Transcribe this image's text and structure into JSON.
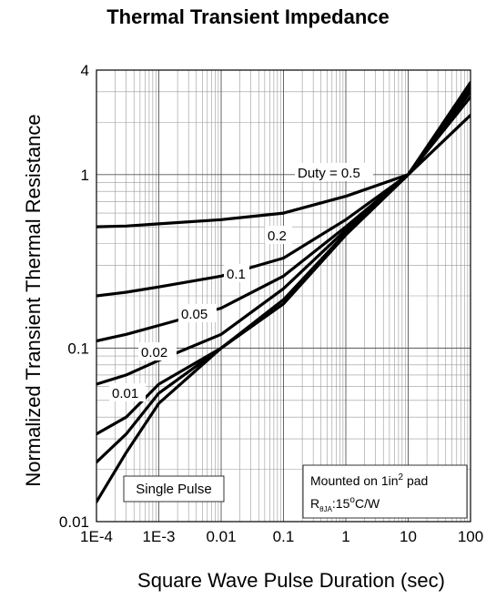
{
  "chart_data": {
    "type": "line",
    "title": "Thermal Transient Impedance",
    "xlabel": "Square Wave Pulse Duration (sec)",
    "ylabel": "Normalized Transient Thermal Resistance",
    "xscale": "log",
    "yscale": "log",
    "xlim": [
      0.0001,
      100
    ],
    "ylim": [
      0.01,
      4
    ],
    "grid": true,
    "x_tick_labels": [
      "1E-4",
      "1E-3",
      "0.01",
      "0.1",
      "1",
      "10",
      "100"
    ],
    "y_tick_labels": [
      "0.01",
      "0.1",
      "1",
      "4"
    ],
    "series": [
      {
        "name": "Duty = 0.5",
        "x": [
          0.0001,
          0.0003,
          0.001,
          0.01,
          0.1,
          1,
          10,
          100
        ],
        "y": [
          0.5,
          0.505,
          0.52,
          0.55,
          0.6,
          0.75,
          1.0,
          2.2
        ]
      },
      {
        "name": "0.2",
        "x": [
          0.0001,
          0.0003,
          0.001,
          0.01,
          0.1,
          1,
          10,
          100
        ],
        "y": [
          0.2,
          0.21,
          0.225,
          0.26,
          0.33,
          0.55,
          1.0,
          2.8
        ]
      },
      {
        "name": "0.1",
        "x": [
          0.0001,
          0.0003,
          0.001,
          0.01,
          0.1,
          1,
          10,
          100
        ],
        "y": [
          0.11,
          0.12,
          0.135,
          0.17,
          0.26,
          0.5,
          1.0,
          3.0
        ]
      },
      {
        "name": "0.05",
        "x": [
          0.0001,
          0.0003,
          0.001,
          0.01,
          0.1,
          1,
          10,
          100
        ],
        "y": [
          0.062,
          0.07,
          0.085,
          0.12,
          0.22,
          0.48,
          1.0,
          3.1
        ]
      },
      {
        "name": "0.02",
        "x": [
          0.0001,
          0.0003,
          0.001,
          0.01,
          0.1,
          1,
          10,
          100
        ],
        "y": [
          0.032,
          0.04,
          0.062,
          0.1,
          0.19,
          0.46,
          1.0,
          3.2
        ]
      },
      {
        "name": "0.01",
        "x": [
          0.0001,
          0.0003,
          0.001,
          0.01,
          0.1,
          1,
          10,
          100
        ],
        "y": [
          0.022,
          0.032,
          0.055,
          0.1,
          0.18,
          0.45,
          1.0,
          3.3
        ]
      },
      {
        "name": "Single Pulse",
        "x": [
          0.0001,
          0.0003,
          0.001,
          0.01,
          0.1,
          1,
          10,
          100
        ],
        "y": [
          0.013,
          0.025,
          0.048,
          0.1,
          0.18,
          0.45,
          1.0,
          3.4
        ]
      }
    ],
    "annotations": {
      "mounted_line1_pre": "Mounted on 1in",
      "mounted_line1_sup": "2",
      "mounted_line1_post": " pad",
      "rth_main": "R",
      "rth_sub": "θJA",
      "rth_value_pre": ":15",
      "rth_value_sup": "o",
      "rth_value_post": "C/W"
    }
  }
}
